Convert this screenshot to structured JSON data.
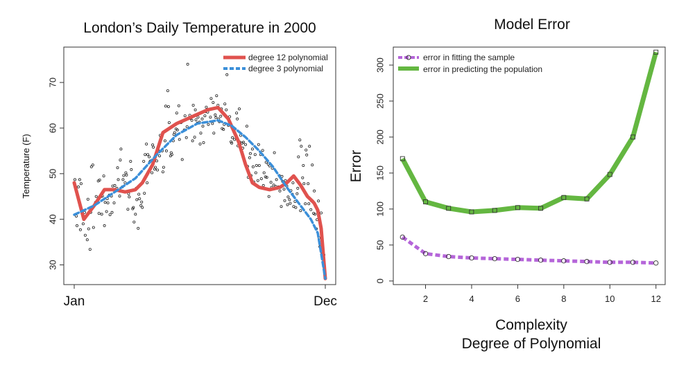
{
  "chart_data": [
    {
      "type": "scatter",
      "title": "London’s Daily Temperature in 2000",
      "xlabel": "",
      "ylabel": "Temperature (F)",
      "x_tick_labels": [
        "Jan",
        "Dec"
      ],
      "xlim": [
        1,
        366
      ],
      "ylim": [
        27.5,
        77
      ],
      "y_ticks": [
        30,
        40,
        50,
        60,
        70
      ],
      "legend_position": "top-right",
      "point_color": "#222222",
      "series": [
        {
          "name": "degree 12 polynomial",
          "style": "solid",
          "color": "#e0524e",
          "x": [
            1,
            15,
            30,
            45,
            60,
            75,
            90,
            100,
            115,
            130,
            150,
            165,
            180,
            195,
            210,
            225,
            240,
            250,
            260,
            270,
            285,
            300,
            310,
            320,
            330,
            340,
            347,
            350,
            355,
            360,
            366
          ],
          "y": [
            48,
            40,
            43,
            46.5,
            46.5,
            46,
            46.5,
            48,
            52,
            59,
            61,
            62,
            63,
            64,
            64.5,
            62,
            57,
            52,
            48,
            47,
            46.5,
            47,
            48,
            49.5,
            47.5,
            45,
            44,
            43.5,
            42,
            38,
            27
          ]
        },
        {
          "name": "degree 3 polynomial",
          "style": "dashed",
          "color": "#3b8fd9",
          "x": [
            1,
            30,
            60,
            90,
            120,
            150,
            180,
            210,
            230,
            250,
            270,
            290,
            310,
            330,
            345,
            355,
            366
          ],
          "y": [
            41,
            43,
            46,
            49,
            54,
            58.5,
            61,
            61.7,
            60.5,
            58,
            55,
            51.5,
            47,
            43,
            40,
            37,
            27
          ]
        }
      ],
      "points": [
        [
          2,
          48.7
        ],
        [
          4,
          40.7
        ],
        [
          5,
          38.6
        ],
        [
          7,
          47.1
        ],
        [
          9,
          48.7
        ],
        [
          10,
          37.7
        ],
        [
          11,
          47.8
        ],
        [
          12,
          41.5
        ],
        [
          14,
          39.0
        ],
        [
          16,
          41.5
        ],
        [
          17,
          36.5
        ],
        [
          18,
          40.7
        ],
        [
          20,
          35.5
        ],
        [
          21,
          44.4
        ],
        [
          22,
          37.9
        ],
        [
          24,
          33.4
        ],
        [
          25,
          41.5
        ],
        [
          26,
          51.5
        ],
        [
          28,
          51.9
        ],
        [
          29,
          38.2
        ],
        [
          30,
          43.0
        ],
        [
          32,
          43.7
        ],
        [
          33,
          45.0
        ],
        [
          34,
          43.6
        ],
        [
          36,
          48.4
        ],
        [
          37,
          41.3
        ],
        [
          38,
          48.6
        ],
        [
          40,
          45.0
        ],
        [
          41,
          41.1
        ],
        [
          42,
          45.1
        ],
        [
          44,
          49.5
        ],
        [
          45,
          38.6
        ],
        [
          46,
          43.7
        ],
        [
          48,
          41.7
        ],
        [
          49,
          44.5
        ],
        [
          50,
          43.6
        ],
        [
          52,
          45.3
        ],
        [
          53,
          41.0
        ],
        [
          55,
          45.1
        ],
        [
          56,
          41.5
        ],
        [
          57,
          47.3
        ],
        [
          59,
          43.6
        ],
        [
          60,
          47.4
        ],
        [
          61,
          46.5
        ],
        [
          63,
          46.8
        ],
        [
          64,
          51.3
        ],
        [
          65,
          48.7
        ],
        [
          67,
          45.1
        ],
        [
          68,
          53.0
        ],
        [
          69,
          55.4
        ],
        [
          71,
          47.1
        ],
        [
          72,
          48.7
        ],
        [
          73,
          49.6
        ],
        [
          75,
          48.0
        ],
        [
          76,
          50.2
        ],
        [
          77,
          49.7
        ],
        [
          79,
          42.2
        ],
        [
          80,
          45.6
        ],
        [
          81,
          44.9
        ],
        [
          83,
          52.7
        ],
        [
          84,
          50.9
        ],
        [
          86,
          42.3
        ],
        [
          87,
          42.6
        ],
        [
          88,
          39.4
        ],
        [
          90,
          41.1
        ],
        [
          91,
          46.8
        ],
        [
          92,
          44.3
        ],
        [
          94,
          38.0
        ],
        [
          95,
          45.5
        ],
        [
          96,
          44.5
        ],
        [
          98,
          43.0
        ],
        [
          99,
          43.8
        ],
        [
          100,
          42.6
        ],
        [
          102,
          52.7
        ],
        [
          103,
          45.7
        ],
        [
          104,
          54.2
        ],
        [
          106,
          56.5
        ],
        [
          107,
          48.0
        ],
        [
          108,
          54.2
        ],
        [
          110,
          53.7
        ],
        [
          111,
          52.6
        ],
        [
          112,
          52.8
        ],
        [
          114,
          50.2
        ],
        [
          115,
          56.3
        ],
        [
          116,
          55.8
        ],
        [
          118,
          51.0
        ],
        [
          119,
          51.4
        ],
        [
          121,
          52.8
        ],
        [
          122,
          50.8
        ],
        [
          123,
          55.2
        ],
        [
          125,
          53.9
        ],
        [
          126,
          58.4
        ],
        [
          127,
          58.0
        ],
        [
          129,
          55.0
        ],
        [
          130,
          50.4
        ],
        [
          131,
          51.4
        ],
        [
          133,
          57.2
        ],
        [
          134,
          64.8
        ],
        [
          135,
          55.0
        ],
        [
          137,
          68.2
        ],
        [
          138,
          64.7
        ],
        [
          139,
          61.2
        ],
        [
          141,
          53.9
        ],
        [
          142,
          54.6
        ],
        [
          143,
          54.2
        ],
        [
          145,
          57.2
        ],
        [
          146,
          58.6
        ],
        [
          147,
          59.0
        ],
        [
          149,
          59.8
        ],
        [
          150,
          63.3
        ],
        [
          151,
          59.6
        ],
        [
          153,
          64.9
        ],
        [
          154,
          57.5
        ],
        [
          156,
          61.2
        ],
        [
          157,
          61.3
        ],
        [
          158,
          53.1
        ],
        [
          160,
          61.6
        ],
        [
          161,
          59.6
        ],
        [
          162,
          62.7
        ],
        [
          164,
          57.9
        ],
        [
          165,
          60.3
        ],
        [
          166,
          74.0
        ],
        [
          168,
          62.1
        ],
        [
          169,
          62.8
        ],
        [
          170,
          62.1
        ],
        [
          172,
          61.7
        ],
        [
          173,
          57.2
        ],
        [
          174,
          65.0
        ],
        [
          176,
          58.0
        ],
        [
          177,
          64.0
        ],
        [
          178,
          61.8
        ],
        [
          180,
          61.1
        ],
        [
          181,
          62.4
        ],
        [
          183,
          61.3
        ],
        [
          184,
          56.5
        ],
        [
          185,
          58.9
        ],
        [
          187,
          62.0
        ],
        [
          188,
          60.4
        ],
        [
          189,
          56.8
        ],
        [
          191,
          62.7
        ],
        [
          192,
          63.6
        ],
        [
          193,
          64.6
        ],
        [
          195,
          63.5
        ],
        [
          196,
          60.8
        ],
        [
          198,
          64.1
        ],
        [
          199,
          62.4
        ],
        [
          200,
          66.5
        ],
        [
          202,
          61.0
        ],
        [
          203,
          65.6
        ],
        [
          204,
          58.9
        ],
        [
          206,
          62.9
        ],
        [
          207,
          62.3
        ],
        [
          208,
          67.1
        ],
        [
          210,
          65.0
        ],
        [
          211,
          62.0
        ],
        [
          212,
          61.4
        ],
        [
          214,
          62.6
        ],
        [
          215,
          64.2
        ],
        [
          216,
          59.9
        ],
        [
          218,
          59.7
        ],
        [
          219,
          60.8
        ],
        [
          220,
          65.3
        ],
        [
          222,
          64.0
        ],
        [
          223,
          71.7
        ],
        [
          225,
          60.6
        ],
        [
          226,
          61.6
        ],
        [
          227,
          62.5
        ],
        [
          229,
          57.0
        ],
        [
          230,
          56.7
        ],
        [
          231,
          57.9
        ],
        [
          233,
          59.2
        ],
        [
          234,
          57.5
        ],
        [
          235,
          59.8
        ],
        [
          237,
          63.3
        ],
        [
          238,
          62.0
        ],
        [
          239,
          56.1
        ],
        [
          241,
          64.2
        ],
        [
          242,
          56.9
        ],
        [
          243,
          58.4
        ],
        [
          245,
          56.7
        ],
        [
          246,
          55.6
        ],
        [
          247,
          56.9
        ],
        [
          249,
          52.6
        ],
        [
          250,
          56.4
        ],
        [
          252,
          60.4
        ],
        [
          253,
          51.6
        ],
        [
          254,
          49.2
        ],
        [
          256,
          53.5
        ],
        [
          257,
          54.4
        ],
        [
          258,
          49.6
        ],
        [
          260,
          55.4
        ],
        [
          261,
          51.5
        ],
        [
          262,
          48.2
        ],
        [
          264,
          54.2
        ],
        [
          265,
          50.2
        ],
        [
          266,
          51.8
        ],
        [
          268,
          48.5
        ],
        [
          269,
          56.4
        ],
        [
          270,
          51.8
        ],
        [
          272,
          54.2
        ],
        [
          273,
          48.9
        ],
        [
          275,
          55.1
        ],
        [
          276,
          47.4
        ],
        [
          277,
          50.2
        ],
        [
          279,
          49.3
        ],
        [
          280,
          52.5
        ],
        [
          281,
          49.2
        ],
        [
          283,
          52.1
        ],
        [
          284,
          45.0
        ],
        [
          285,
          51.7
        ],
        [
          287,
          48.1
        ],
        [
          288,
          47.0
        ],
        [
          289,
          51.2
        ],
        [
          291,
          47.5
        ],
        [
          292,
          54.6
        ],
        [
          294,
          47.2
        ],
        [
          295,
          48.7
        ],
        [
          296,
          46.8
        ],
        [
          298,
          47.1
        ],
        [
          299,
          49.6
        ],
        [
          300,
          46.2
        ],
        [
          302,
          42.8
        ],
        [
          303,
          49.4
        ],
        [
          304,
          48.3
        ],
        [
          306,
          46.6
        ],
        [
          307,
          44.1
        ],
        [
          308,
          48.5
        ],
        [
          310,
          47.3
        ],
        [
          311,
          43.2
        ],
        [
          312,
          44.9
        ],
        [
          314,
          44.3
        ],
        [
          315,
          43.5
        ],
        [
          316,
          46.3
        ],
        [
          318,
          45.5
        ],
        [
          319,
          48.0
        ],
        [
          320,
          42.8
        ],
        [
          322,
          43.9
        ],
        [
          323,
          42.6
        ],
        [
          325,
          45.6
        ],
        [
          326,
          46.8
        ],
        [
          327,
          53.7
        ],
        [
          329,
          57.4
        ],
        [
          330,
          41.9
        ],
        [
          331,
          56.0
        ],
        [
          333,
          49.1
        ],
        [
          334,
          51.8
        ],
        [
          335,
          47.8
        ],
        [
          337,
          43.4
        ],
        [
          338,
          55.2
        ],
        [
          339,
          54.1
        ],
        [
          341,
          47.8
        ],
        [
          342,
          43.4
        ],
        [
          343,
          56.0
        ],
        [
          345,
          42.1
        ],
        [
          346,
          44.0
        ],
        [
          347,
          51.9
        ],
        [
          349,
          41.3
        ],
        [
          350,
          46.2
        ],
        [
          351,
          41.1
        ],
        [
          353,
          37.9
        ],
        [
          354,
          39.9
        ],
        [
          356,
          44.0
        ],
        [
          357,
          35.9
        ],
        [
          358,
          34.0
        ],
        [
          360,
          41.4
        ],
        [
          361,
          32.4
        ],
        [
          362,
          33.5
        ],
        [
          364,
          32.2
        ],
        [
          366,
          27.0
        ]
      ]
    },
    {
      "type": "line",
      "title": "Model Error",
      "xlabel": "Complexity\nDegree of Polynomial",
      "ylabel": "Error",
      "xlim": [
        0.6,
        12.4
      ],
      "ylim": [
        -5,
        325
      ],
      "x_ticks": [
        2,
        4,
        6,
        8,
        10,
        12
      ],
      "y_ticks": [
        0,
        50,
        100,
        150,
        200,
        250,
        300
      ],
      "legend_position": "top-left",
      "categories": [
        1,
        2,
        3,
        4,
        5,
        6,
        7,
        8,
        9,
        10,
        11,
        12
      ],
      "series": [
        {
          "name": "error in fitting the sample",
          "style": "dashed",
          "marker": "circle",
          "color": "#b565d9",
          "values": [
            61,
            38,
            34,
            32,
            31,
            30,
            29,
            28,
            27,
            26,
            26,
            25
          ]
        },
        {
          "name": "error in predicting the population",
          "style": "solid",
          "marker": "square",
          "color": "#64b741",
          "values": [
            170,
            110,
            101,
            96,
            98,
            102,
            101,
            116,
            114,
            148,
            200,
            318
          ]
        }
      ]
    }
  ]
}
